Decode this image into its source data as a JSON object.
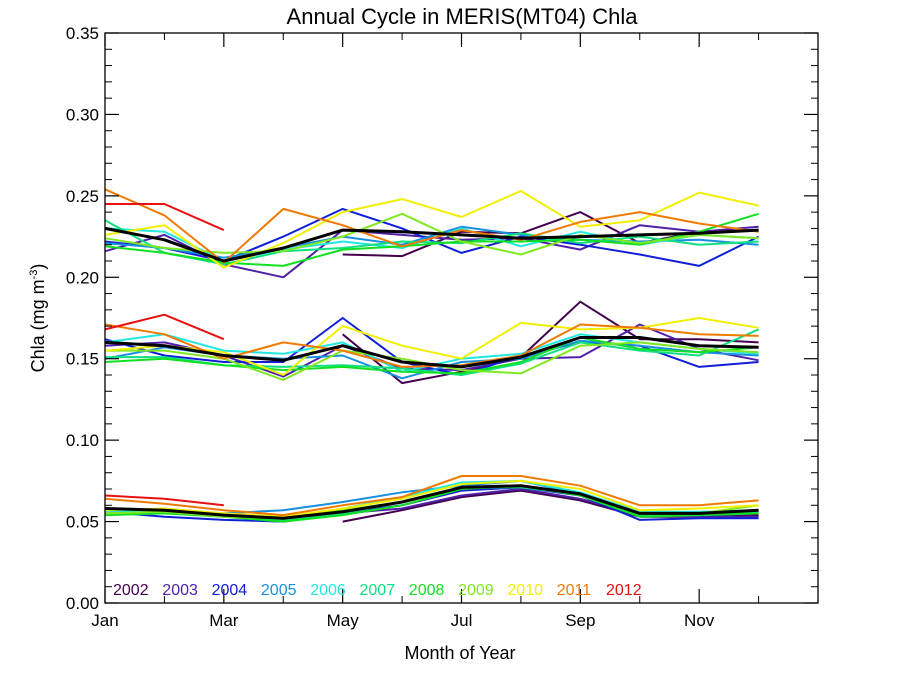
{
  "chart_data": {
    "type": "line",
    "title": "Annual Cycle in MERIS(MT04) Chla",
    "xlabel": "Month of Year",
    "ylabel": "Chla (mg m",
    "ylabel_sup": "-3",
    "ylabel_close": ")",
    "x_tick_labels": [
      "Jan",
      "Mar",
      "May",
      "Jul",
      "Sep",
      "Nov"
    ],
    "x_tick_months": [
      1,
      3,
      5,
      7,
      9,
      11
    ],
    "xlim": [
      1,
      13
    ],
    "ylim": [
      0,
      0.35
    ],
    "y_ticks": [
      0.0,
      0.05,
      0.1,
      0.15,
      0.2,
      0.25,
      0.3,
      0.35
    ],
    "y_tick_labels": [
      "0.00",
      "0.05",
      "0.10",
      "0.15",
      "0.20",
      "0.25",
      "0.30",
      "0.35"
    ],
    "grid": false,
    "legend_position": "bottom-left inside plot",
    "months": [
      1,
      2,
      3,
      4,
      5,
      6,
      7,
      8,
      9,
      10,
      11,
      12
    ],
    "series": [
      {
        "name": "2002",
        "color": "#44004f",
        "upper": [
          null,
          null,
          null,
          null,
          0.214,
          0.213,
          0.228,
          0.227,
          0.24,
          0.221,
          0.228,
          0.229
        ],
        "median": [
          null,
          null,
          null,
          null,
          0.165,
          0.135,
          0.142,
          0.151,
          0.185,
          0.162,
          0.162,
          0.16
        ],
        "lower": [
          null,
          null,
          null,
          null,
          0.05,
          0.057,
          0.065,
          0.069,
          0.063,
          0.053,
          0.053,
          0.054
        ]
      },
      {
        "name": "2003",
        "color": "#5020a8",
        "upper": [
          0.216,
          0.226,
          0.208,
          0.2,
          0.229,
          0.226,
          0.223,
          0.224,
          0.217,
          0.232,
          0.228,
          0.231
        ],
        "median": [
          0.158,
          0.16,
          0.152,
          0.139,
          0.158,
          0.144,
          0.143,
          0.15,
          0.151,
          0.171,
          0.156,
          0.149
        ],
        "lower": [
          0.058,
          0.056,
          0.053,
          0.051,
          0.055,
          0.058,
          0.066,
          0.07,
          0.064,
          0.054,
          0.053,
          0.053
        ]
      },
      {
        "name": "2004",
        "color": "#1020d8",
        "upper": [
          0.222,
          0.218,
          0.21,
          0.225,
          0.242,
          0.23,
          0.215,
          0.225,
          0.22,
          0.214,
          0.207,
          0.225
        ],
        "median": [
          0.162,
          0.152,
          0.148,
          0.148,
          0.175,
          0.148,
          0.14,
          0.152,
          0.16,
          0.158,
          0.145,
          0.148
        ],
        "lower": [
          0.056,
          0.053,
          0.051,
          0.05,
          0.055,
          0.06,
          0.069,
          0.071,
          0.066,
          0.051,
          0.052,
          0.052
        ]
      },
      {
        "name": "2005",
        "color": "#1890e0",
        "upper": [
          0.221,
          0.218,
          0.212,
          0.218,
          0.225,
          0.22,
          0.231,
          0.226,
          0.223,
          0.222,
          0.223,
          0.22
        ],
        "median": [
          0.15,
          0.157,
          0.152,
          0.15,
          0.152,
          0.138,
          0.148,
          0.15,
          0.161,
          0.158,
          0.154,
          0.152
        ],
        "lower": [
          0.057,
          0.055,
          0.055,
          0.057,
          0.062,
          0.068,
          0.072,
          0.075,
          0.067,
          0.054,
          0.054,
          0.055
        ]
      },
      {
        "name": "2006",
        "color": "#20e8e0",
        "upper": [
          0.23,
          0.228,
          0.21,
          0.217,
          0.222,
          0.218,
          0.23,
          0.219,
          0.228,
          0.22,
          0.226,
          0.224
        ],
        "median": [
          0.16,
          0.165,
          0.155,
          0.153,
          0.16,
          0.142,
          0.15,
          0.153,
          0.165,
          0.16,
          0.156,
          0.153
        ],
        "lower": [
          0.056,
          0.057,
          0.054,
          0.052,
          0.058,
          0.065,
          0.074,
          0.075,
          0.068,
          0.056,
          0.056,
          0.057
        ]
      },
      {
        "name": "2007",
        "color": "#10e080",
        "upper": [
          0.235,
          0.215,
          0.208,
          0.216,
          0.218,
          0.222,
          0.221,
          0.227,
          0.221,
          0.225,
          0.22,
          0.222
        ],
        "median": [
          0.151,
          0.151,
          0.146,
          0.145,
          0.146,
          0.144,
          0.14,
          0.147,
          0.16,
          0.155,
          0.152,
          0.168
        ],
        "lower": [
          0.055,
          0.056,
          0.054,
          0.051,
          0.055,
          0.062,
          0.071,
          0.071,
          0.067,
          0.054,
          0.054,
          0.056
        ]
      },
      {
        "name": "2008",
        "color": "#10e020",
        "upper": [
          0.219,
          0.215,
          0.209,
          0.207,
          0.217,
          0.219,
          0.222,
          0.222,
          0.223,
          0.22,
          0.228,
          0.239
        ],
        "median": [
          0.148,
          0.15,
          0.146,
          0.143,
          0.145,
          0.142,
          0.141,
          0.148,
          0.163,
          0.156,
          0.154,
          0.157
        ],
        "lower": [
          0.054,
          0.055,
          0.053,
          0.05,
          0.054,
          0.06,
          0.07,
          0.072,
          0.066,
          0.053,
          0.054,
          0.055
        ]
      },
      {
        "name": "2009",
        "color": "#80e820",
        "upper": [
          0.224,
          0.218,
          0.215,
          0.216,
          0.225,
          0.239,
          0.222,
          0.214,
          0.226,
          0.221,
          0.226,
          0.224
        ],
        "median": [
          0.155,
          0.155,
          0.15,
          0.137,
          0.155,
          0.15,
          0.143,
          0.141,
          0.158,
          0.16,
          0.156,
          0.154
        ],
        "lower": [
          0.055,
          0.056,
          0.053,
          0.052,
          0.057,
          0.062,
          0.071,
          0.072,
          0.067,
          0.055,
          0.055,
          0.06
        ]
      },
      {
        "name": "2010",
        "color": "#f0f000",
        "upper": [
          0.226,
          0.232,
          0.206,
          0.221,
          0.24,
          0.248,
          0.237,
          0.253,
          0.231,
          0.235,
          0.252,
          0.244
        ],
        "median": [
          0.155,
          0.158,
          0.154,
          0.14,
          0.17,
          0.158,
          0.15,
          0.172,
          0.168,
          0.169,
          0.175,
          0.169
        ],
        "lower": [
          0.057,
          0.058,
          0.055,
          0.053,
          0.058,
          0.064,
          0.073,
          0.075,
          0.07,
          0.057,
          0.058,
          0.06
        ]
      },
      {
        "name": "2011",
        "color": "#f07a00",
        "upper": [
          0.254,
          0.238,
          0.209,
          0.242,
          0.232,
          0.219,
          0.229,
          0.223,
          0.234,
          0.24,
          0.233,
          0.228
        ],
        "median": [
          0.171,
          0.165,
          0.15,
          0.16,
          0.155,
          0.145,
          0.146,
          0.152,
          0.171,
          0.169,
          0.165,
          0.164
        ],
        "lower": [
          0.064,
          0.061,
          0.057,
          0.054,
          0.06,
          0.065,
          0.078,
          0.078,
          0.072,
          0.06,
          0.06,
          0.063
        ]
      },
      {
        "name": "2012",
        "color": "#e81010",
        "upper": [
          0.245,
          0.245,
          0.229,
          null,
          null,
          null,
          null,
          null,
          null,
          null,
          null,
          null
        ],
        "median": [
          0.168,
          0.177,
          0.162,
          null,
          null,
          null,
          null,
          null,
          null,
          null,
          null,
          null
        ],
        "lower": [
          0.066,
          0.064,
          0.06,
          null,
          null,
          null,
          null,
          null,
          null,
          null,
          null,
          null
        ]
      }
    ],
    "mean_series": {
      "color": "#000000",
      "upper": [
        0.23,
        0.223,
        0.21,
        0.218,
        0.229,
        0.228,
        0.226,
        0.224,
        0.225,
        0.226,
        0.227,
        0.229
      ],
      "median": [
        0.16,
        0.158,
        0.152,
        0.149,
        0.158,
        0.148,
        0.145,
        0.151,
        0.163,
        0.163,
        0.158,
        0.157
      ],
      "lower": [
        0.058,
        0.057,
        0.054,
        0.052,
        0.056,
        0.062,
        0.071,
        0.072,
        0.067,
        0.055,
        0.055,
        0.057
      ]
    }
  }
}
